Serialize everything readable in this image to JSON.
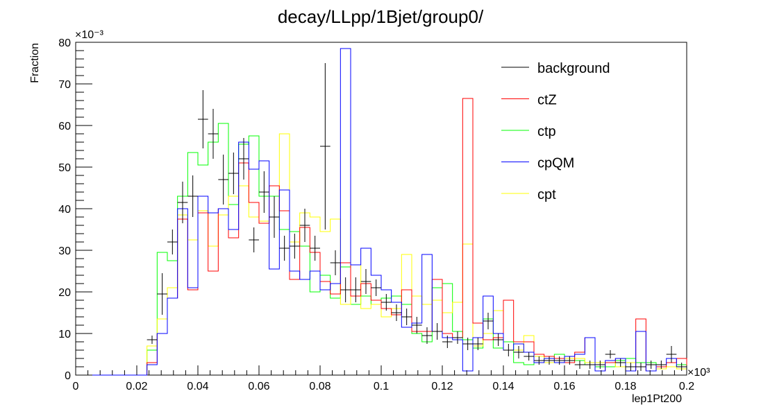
{
  "chart_data": {
    "type": "histogram",
    "title": "decay/LLpp/1Bjet/group0/",
    "xlabel": "lep1Pt200",
    "ylabel": "Fraction",
    "x_exponent": "×10³",
    "y_exponent": "×10⁻³",
    "xlim": [
      0,
      0.2
    ],
    "ylim": [
      0,
      80
    ],
    "x_ticks": [
      "0",
      "0.02",
      "0.04",
      "0.06",
      "0.08",
      "0.1",
      "0.12",
      "0.14",
      "0.16",
      "0.18",
      "0.2"
    ],
    "y_ticks": [
      "0",
      "10",
      "20",
      "30",
      "40",
      "50",
      "60",
      "70",
      "80"
    ],
    "bin_edges": [
      0,
      0.2
    ],
    "bins": 60,
    "legend_position": "top-right",
    "series": [
      {
        "name": "background",
        "color": "#000000",
        "style": "points-with-errors",
        "values": [
          0,
          0,
          0,
          0,
          0,
          0,
          0,
          8.5,
          19.5,
          32,
          41.5,
          43,
          61.5,
          58,
          47,
          48.5,
          52,
          32.5,
          44,
          38,
          30.5,
          31,
          36,
          30.5,
          55,
          27,
          20.5,
          20.5,
          22.5,
          21,
          17.5,
          15,
          14,
          12,
          9.5,
          10.5,
          8,
          9,
          7.5,
          7.5,
          13,
          8.5,
          6,
          5.5,
          4.5,
          3.5,
          3.5,
          3.5,
          3.5,
          2.5,
          2.5,
          2.5,
          5,
          3,
          2,
          2,
          2.5,
          2.5,
          5,
          2
        ],
        "errors": [
          0,
          0,
          0,
          0,
          0,
          0,
          0,
          1,
          5,
          3,
          5,
          5,
          7,
          6,
          6,
          5,
          5,
          3,
          5,
          5,
          3,
          3,
          4,
          3,
          20,
          3,
          3,
          3,
          3,
          2,
          2,
          2,
          2,
          2,
          2,
          2,
          1.5,
          1.5,
          1.5,
          1.5,
          2,
          1.5,
          1.5,
          1.5,
          1,
          1,
          1,
          1,
          1,
          1,
          1,
          1,
          1,
          1,
          1,
          1,
          1,
          1,
          2,
          1
        ]
      },
      {
        "name": "ctZ",
        "color": "#ff0000",
        "style": "step",
        "values": [
          0,
          0,
          0,
          0,
          0,
          0,
          0,
          3,
          10,
          18.5,
          37.5,
          20.5,
          39,
          25,
          40,
          33,
          51,
          41.5,
          36.5,
          45.5,
          39.5,
          23,
          35.5,
          29.5,
          22.5,
          19.5,
          27,
          19,
          22,
          18,
          16,
          14.5,
          20.5,
          10.5,
          10.5,
          23,
          10,
          9,
          66.5,
          12.5,
          8.5,
          9,
          18,
          8,
          8,
          5,
          4.5,
          4,
          3,
          5.5,
          9,
          1,
          3,
          4,
          1,
          13.5,
          1,
          2,
          3,
          4
        ]
      },
      {
        "name": "ctp",
        "color": "#00ff00",
        "style": "step",
        "values": [
          0,
          0,
          0,
          0,
          0,
          0,
          0,
          6,
          29.5,
          27.5,
          43,
          53.5,
          50.5,
          56,
          60.5,
          41,
          55.5,
          57.5,
          43,
          43,
          35,
          34.5,
          31,
          20,
          24,
          18.5,
          26,
          17,
          19,
          17,
          18.5,
          19,
          17,
          10,
          8,
          21,
          22,
          10.5,
          8.5,
          6.5,
          13.5,
          6.5,
          8,
          3,
          2.5,
          4.5,
          3.5,
          5,
          4,
          3.5,
          2.5,
          2,
          2,
          3.5,
          4,
          3,
          3,
          2,
          2,
          2.5
        ]
      },
      {
        "name": "cpQM",
        "color": "#0000ff",
        "style": "step",
        "values": [
          0,
          0,
          0,
          0,
          0,
          0,
          0,
          2.5,
          10,
          18.5,
          40,
          21,
          43,
          39,
          40,
          35,
          56,
          49.5,
          51.5,
          25.5,
          44.5,
          25,
          23,
          25,
          20.5,
          22,
          78.5,
          26.5,
          30.5,
          24,
          20.5,
          17.5,
          11.5,
          12.5,
          29,
          10.5,
          9,
          8.5,
          1,
          9,
          19,
          10,
          6,
          7.5,
          5.5,
          3,
          4,
          3,
          4.5,
          5,
          9,
          1,
          3.5,
          4,
          1,
          10.5,
          1,
          2.5,
          4,
          2
        ]
      },
      {
        "name": "cpt",
        "color": "#ffff00",
        "style": "step",
        "values": [
          0,
          0,
          0,
          0,
          0,
          0,
          0,
          7,
          13.5,
          21,
          38.5,
          32.5,
          39.5,
          31,
          38.5,
          43,
          45.5,
          38,
          37,
          38,
          58,
          32,
          39,
          38,
          34.5,
          37.5,
          17,
          26.5,
          16,
          17,
          14,
          16,
          29,
          19,
          17,
          18,
          15,
          17.5,
          31.5,
          7,
          10,
          15.5,
          6,
          6,
          9.5,
          4.5,
          3,
          4,
          4,
          4,
          3,
          3,
          3,
          2,
          3,
          2,
          2.5,
          1.5,
          2,
          1.5
        ]
      }
    ]
  }
}
